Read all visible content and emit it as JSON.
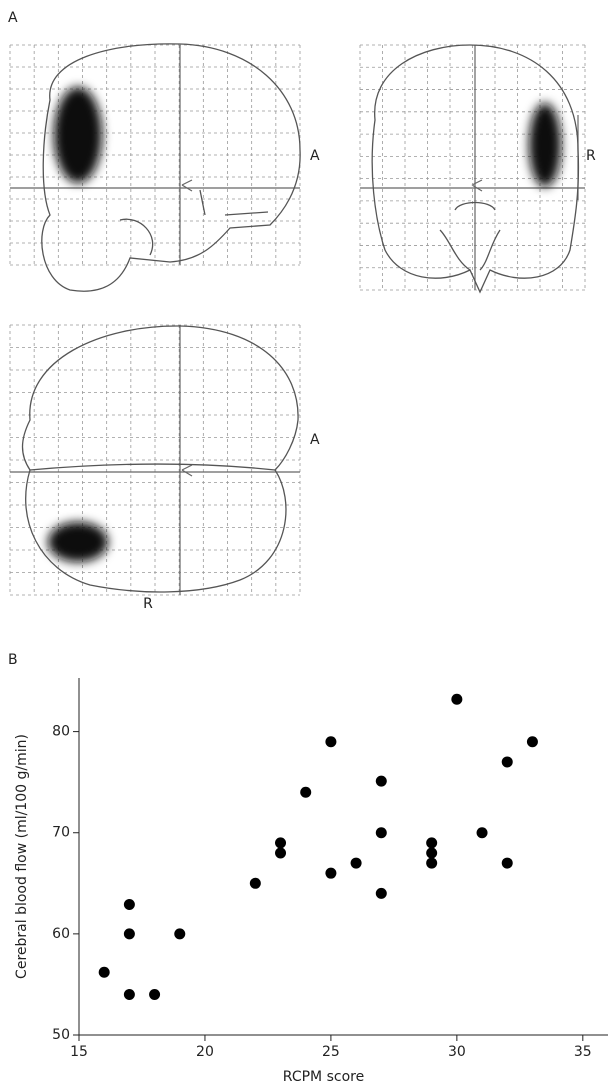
{
  "panel_labels": [
    "A",
    "B"
  ],
  "brain_labels": [
    "A",
    "R",
    "A",
    "R"
  ],
  "chart_data": {
    "type": "scatter",
    "x_label": "RCPM score",
    "y_label": "Cerebral blood flow (ml/100 g/min)",
    "x": [
      16,
      17,
      17,
      17,
      18,
      19,
      22,
      23,
      23,
      24,
      25,
      25,
      26,
      27,
      27,
      27,
      29,
      29,
      29,
      30,
      31,
      32,
      32,
      33
    ],
    "values": [
      56.2,
      62.9,
      60,
      54,
      54,
      60,
      65,
      69,
      68,
      74,
      79,
      66,
      67,
      75.1,
      70,
      64,
      69,
      68,
      67,
      83.2,
      70,
      77,
      67,
      79
    ],
    "color": "#000000",
    "xlim": [
      15,
      36
    ],
    "xticks": [
      15,
      20,
      25,
      30,
      35
    ],
    "ylim": [
      50,
      85.3
    ],
    "yticks": [
      50,
      60,
      70,
      80
    ]
  }
}
